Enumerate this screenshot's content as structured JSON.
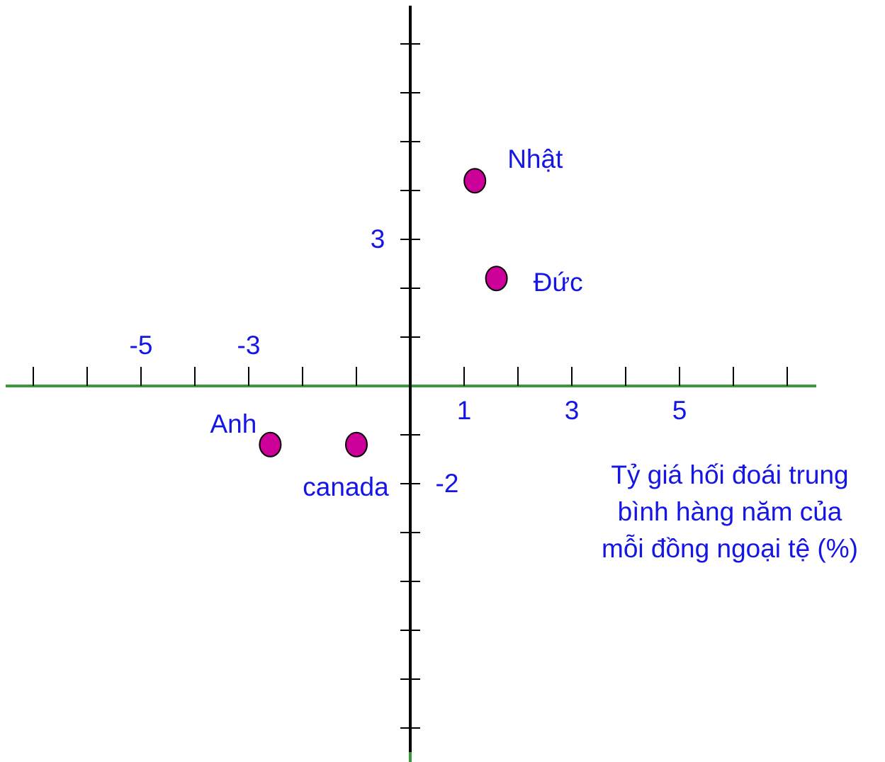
{
  "chart_data": {
    "type": "scatter",
    "title": "",
    "xlabel": "",
    "ylabel": "",
    "xlim": [
      -7,
      7
    ],
    "ylim": [
      -6,
      6.5
    ],
    "grid": false,
    "x_tick_labels": [
      "-5",
      "-3",
      "1",
      "3",
      "5"
    ],
    "y_tick_labels": [
      "3",
      "-2"
    ],
    "points": [
      {
        "label": "Nhật",
        "x": 1.2,
        "y": 4.2
      },
      {
        "label": "Đức",
        "x": 1.6,
        "y": 2.2
      },
      {
        "label": "Anh",
        "x": -2.6,
        "y": -1.2
      },
      {
        "label": "canada",
        "x": -1.0,
        "y": -1.2
      }
    ],
    "annotation": [
      "Tỷ giá hối đoái trung",
      "bình hàng năm của",
      "mỗi đồng ngoại tệ (%)"
    ],
    "colors": {
      "axis_x": "#3a9a3a",
      "axis_y": "#000000",
      "point_fill": "#cc0099",
      "text": "#1515e6"
    }
  }
}
